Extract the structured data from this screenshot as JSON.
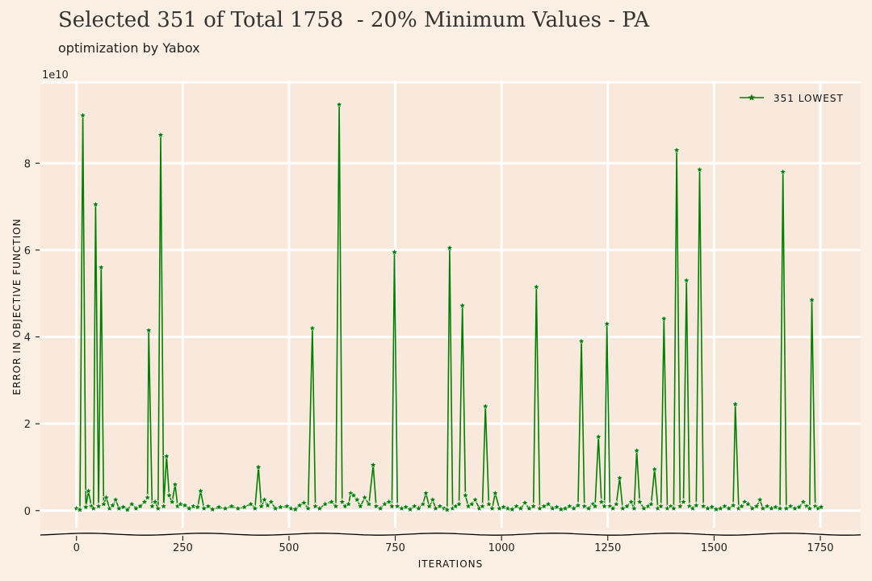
{
  "title": "Selected 351 of Total 1758  - 20% Minimum Values - PA",
  "subtitle": "optimization by Yabox",
  "colors": {
    "background": "#fcf0e4",
    "plot_area": "#f9e8dc",
    "grid": "#ffffff",
    "series": "#008000",
    "axis": "#000000"
  },
  "chart_data": {
    "type": "line",
    "title": "Selected 351 of Total 1758  - 20% Minimum Values - PA",
    "subtitle": "optimization by Yabox",
    "xlabel": "ITERATIONS",
    "ylabel": "ERROR IN OBJECTIVE FUNCTION",
    "y_multiplier_label": "1e10",
    "xlim": [
      -85,
      1845
    ],
    "ylim": [
      -0.45,
      9.9
    ],
    "x_ticks": [
      0,
      250,
      500,
      750,
      1000,
      1250,
      1500,
      1750
    ],
    "x_tick_labels": [
      "0",
      "250",
      "500",
      "750",
      "1000",
      "1250",
      "1500",
      "1750"
    ],
    "y_ticks": [
      0,
      2,
      4,
      6,
      8
    ],
    "y_tick_labels": [
      "0",
      "2",
      "4",
      "6",
      "8"
    ],
    "grid": true,
    "legend_position": "top-right",
    "series": [
      {
        "name": "351 LOWEST",
        "marker": "star",
        "color": "#008000",
        "points": [
          [
            0,
            0.05
          ],
          [
            8,
            0.02
          ],
          [
            15,
            9.1
          ],
          [
            22,
            0.08
          ],
          [
            28,
            0.45
          ],
          [
            35,
            0.1
          ],
          [
            40,
            0.05
          ],
          [
            45,
            7.05
          ],
          [
            52,
            0.1
          ],
          [
            58,
            5.6
          ],
          [
            64,
            0.15
          ],
          [
            70,
            0.3
          ],
          [
            78,
            0.05
          ],
          [
            85,
            0.12
          ],
          [
            92,
            0.25
          ],
          [
            100,
            0.05
          ],
          [
            110,
            0.08
          ],
          [
            120,
            0.02
          ],
          [
            130,
            0.15
          ],
          [
            140,
            0.05
          ],
          [
            150,
            0.1
          ],
          [
            160,
            0.2
          ],
          [
            167,
            0.3
          ],
          [
            170,
            4.15
          ],
          [
            178,
            0.1
          ],
          [
            185,
            0.2
          ],
          [
            192,
            0.05
          ],
          [
            198,
            8.65
          ],
          [
            205,
            0.1
          ],
          [
            212,
            1.25
          ],
          [
            218,
            0.35
          ],
          [
            225,
            0.2
          ],
          [
            232,
            0.6
          ],
          [
            238,
            0.1
          ],
          [
            245,
            0.15
          ],
          [
            255,
            0.12
          ],
          [
            265,
            0.05
          ],
          [
            275,
            0.1
          ],
          [
            285,
            0.08
          ],
          [
            292,
            0.45
          ],
          [
            300,
            0.05
          ],
          [
            310,
            0.1
          ],
          [
            320,
            0.03
          ],
          [
            335,
            0.08
          ],
          [
            350,
            0.05
          ],
          [
            365,
            0.1
          ],
          [
            380,
            0.05
          ],
          [
            395,
            0.08
          ],
          [
            410,
            0.15
          ],
          [
            420,
            0.05
          ],
          [
            428,
            1.0
          ],
          [
            435,
            0.1
          ],
          [
            442,
            0.25
          ],
          [
            450,
            0.12
          ],
          [
            458,
            0.2
          ],
          [
            468,
            0.05
          ],
          [
            480,
            0.08
          ],
          [
            495,
            0.1
          ],
          [
            505,
            0.05
          ],
          [
            515,
            0.03
          ],
          [
            525,
            0.12
          ],
          [
            535,
            0.18
          ],
          [
            545,
            0.05
          ],
          [
            555,
            4.2
          ],
          [
            562,
            0.1
          ],
          [
            572,
            0.05
          ],
          [
            585,
            0.15
          ],
          [
            600,
            0.2
          ],
          [
            610,
            0.1
          ],
          [
            618,
            9.35
          ],
          [
            625,
            0.2
          ],
          [
            632,
            0.1
          ],
          [
            640,
            0.15
          ],
          [
            645,
            0.4
          ],
          [
            652,
            0.35
          ],
          [
            660,
            0.25
          ],
          [
            668,
            0.1
          ],
          [
            678,
            0.3
          ],
          [
            688,
            0.15
          ],
          [
            698,
            1.05
          ],
          [
            705,
            0.1
          ],
          [
            715,
            0.05
          ],
          [
            725,
            0.15
          ],
          [
            735,
            0.2
          ],
          [
            742,
            0.1
          ],
          [
            748,
            5.95
          ],
          [
            755,
            0.1
          ],
          [
            765,
            0.05
          ],
          [
            775,
            0.08
          ],
          [
            785,
            0.03
          ],
          [
            795,
            0.1
          ],
          [
            805,
            0.05
          ],
          [
            815,
            0.15
          ],
          [
            822,
            0.4
          ],
          [
            830,
            0.1
          ],
          [
            838,
            0.25
          ],
          [
            845,
            0.05
          ],
          [
            855,
            0.1
          ],
          [
            865,
            0.05
          ],
          [
            872,
            0.02
          ],
          [
            878,
            6.05
          ],
          [
            885,
            0.05
          ],
          [
            892,
            0.1
          ],
          [
            900,
            0.15
          ],
          [
            908,
            4.72
          ],
          [
            915,
            0.35
          ],
          [
            922,
            0.1
          ],
          [
            930,
            0.15
          ],
          [
            938,
            0.25
          ],
          [
            948,
            0.05
          ],
          [
            955,
            0.1
          ],
          [
            962,
            2.4
          ],
          [
            970,
            0.15
          ],
          [
            978,
            0.05
          ],
          [
            985,
            0.4
          ],
          [
            995,
            0.05
          ],
          [
            1005,
            0.08
          ],
          [
            1015,
            0.05
          ],
          [
            1025,
            0.03
          ],
          [
            1035,
            0.1
          ],
          [
            1045,
            0.05
          ],
          [
            1055,
            0.18
          ],
          [
            1065,
            0.05
          ],
          [
            1075,
            0.1
          ],
          [
            1082,
            5.15
          ],
          [
            1090,
            0.05
          ],
          [
            1100,
            0.1
          ],
          [
            1110,
            0.15
          ],
          [
            1120,
            0.05
          ],
          [
            1130,
            0.08
          ],
          [
            1140,
            0.03
          ],
          [
            1150,
            0.05
          ],
          [
            1160,
            0.1
          ],
          [
            1170,
            0.05
          ],
          [
            1180,
            0.12
          ],
          [
            1188,
            3.9
          ],
          [
            1195,
            0.1
          ],
          [
            1205,
            0.05
          ],
          [
            1215,
            0.15
          ],
          [
            1220,
            0.1
          ],
          [
            1228,
            1.7
          ],
          [
            1235,
            0.2
          ],
          [
            1242,
            0.1
          ],
          [
            1248,
            4.3
          ],
          [
            1255,
            0.1
          ],
          [
            1262,
            0.05
          ],
          [
            1270,
            0.15
          ],
          [
            1278,
            0.75
          ],
          [
            1285,
            0.05
          ],
          [
            1295,
            0.1
          ],
          [
            1305,
            0.2
          ],
          [
            1312,
            0.05
          ],
          [
            1318,
            1.38
          ],
          [
            1325,
            0.2
          ],
          [
            1335,
            0.05
          ],
          [
            1345,
            0.1
          ],
          [
            1352,
            0.15
          ],
          [
            1360,
            0.95
          ],
          [
            1368,
            0.05
          ],
          [
            1375,
            0.1
          ],
          [
            1382,
            4.42
          ],
          [
            1390,
            0.05
          ],
          [
            1398,
            0.1
          ],
          [
            1405,
            0.05
          ],
          [
            1412,
            8.3
          ],
          [
            1420,
            0.1
          ],
          [
            1428,
            0.2
          ],
          [
            1435,
            5.3
          ],
          [
            1442,
            0.1
          ],
          [
            1450,
            0.05
          ],
          [
            1458,
            0.12
          ],
          [
            1466,
            7.85
          ],
          [
            1475,
            0.1
          ],
          [
            1485,
            0.05
          ],
          [
            1495,
            0.08
          ],
          [
            1505,
            0.03
          ],
          [
            1515,
            0.05
          ],
          [
            1525,
            0.1
          ],
          [
            1535,
            0.05
          ],
          [
            1545,
            0.12
          ],
          [
            1550,
            2.45
          ],
          [
            1558,
            0.05
          ],
          [
            1565,
            0.1
          ],
          [
            1572,
            0.2
          ],
          [
            1580,
            0.15
          ],
          [
            1590,
            0.05
          ],
          [
            1600,
            0.1
          ],
          [
            1608,
            0.25
          ],
          [
            1615,
            0.05
          ],
          [
            1625,
            0.1
          ],
          [
            1635,
            0.05
          ],
          [
            1645,
            0.08
          ],
          [
            1655,
            0.05
          ],
          [
            1662,
            7.8
          ],
          [
            1670,
            0.05
          ],
          [
            1680,
            0.1
          ],
          [
            1690,
            0.05
          ],
          [
            1700,
            0.08
          ],
          [
            1710,
            0.2
          ],
          [
            1718,
            0.1
          ],
          [
            1725,
            0.05
          ],
          [
            1730,
            4.85
          ],
          [
            1738,
            0.1
          ],
          [
            1745,
            0.05
          ],
          [
            1752,
            0.08
          ]
        ]
      }
    ]
  }
}
